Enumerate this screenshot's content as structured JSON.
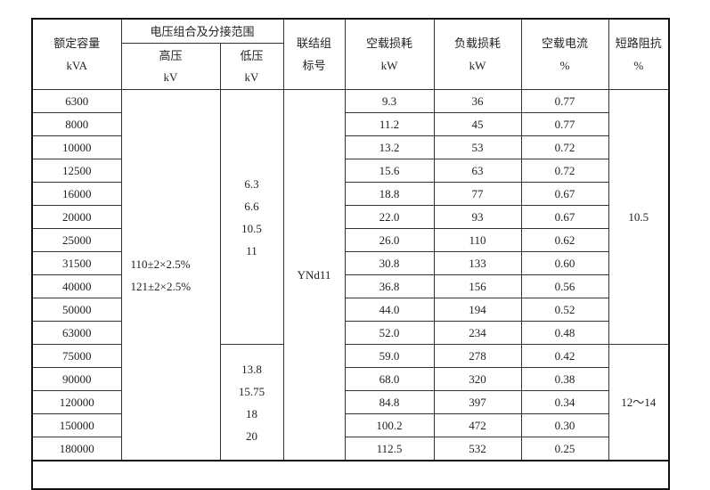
{
  "header": {
    "capacity": "额定容量",
    "capacity_unit": "kVA",
    "voltage_group": "电压组合及分接范围",
    "hv": "高压",
    "hv_unit": "kV",
    "lv": "低压",
    "lv_unit": "kV",
    "connection": "联结组",
    "connection2": "标号",
    "no_load_loss": "空载损耗",
    "no_load_loss_unit": "kW",
    "load_loss": "负载损耗",
    "load_loss_unit": "kW",
    "no_load_current": "空载电流",
    "no_load_current_unit": "%",
    "impedance": "短路阻抗",
    "impedance_unit": "%"
  },
  "hv_values": [
    "110±2×2.5%",
    "121±2×2.5%"
  ],
  "lv_group1": [
    "6.3",
    "6.6",
    "10.5",
    "11"
  ],
  "lv_group2": [
    "13.8",
    "15.75",
    "18",
    "20"
  ],
  "connection_value": "YNd11",
  "impedance_group1": "10.5",
  "impedance_group2": "12～14",
  "rows": [
    [
      "6300",
      "9.3",
      "36",
      "0.77"
    ],
    [
      "8000",
      "11.2",
      "45",
      "0.77"
    ],
    [
      "10000",
      "13.2",
      "53",
      "0.72"
    ],
    [
      "12500",
      "15.6",
      "63",
      "0.72"
    ],
    [
      "16000",
      "18.8",
      "77",
      "0.67"
    ],
    [
      "20000",
      "22.0",
      "93",
      "0.67"
    ],
    [
      "25000",
      "26.0",
      "110",
      "0.62"
    ],
    [
      "31500",
      "30.8",
      "133",
      "0.60"
    ],
    [
      "40000",
      "36.8",
      "156",
      "0.56"
    ],
    [
      "50000",
      "44.0",
      "194",
      "0.52"
    ],
    [
      "63000",
      "52.0",
      "234",
      "0.48"
    ],
    [
      "75000",
      "59.0",
      "278",
      "0.42"
    ],
    [
      "90000",
      "68.0",
      "320",
      "0.38"
    ],
    [
      "120000",
      "84.8",
      "397",
      "0.34"
    ],
    [
      "150000",
      "100.2",
      "472",
      "0.30"
    ],
    [
      "180000",
      "112.5",
      "532",
      "0.25"
    ]
  ]
}
